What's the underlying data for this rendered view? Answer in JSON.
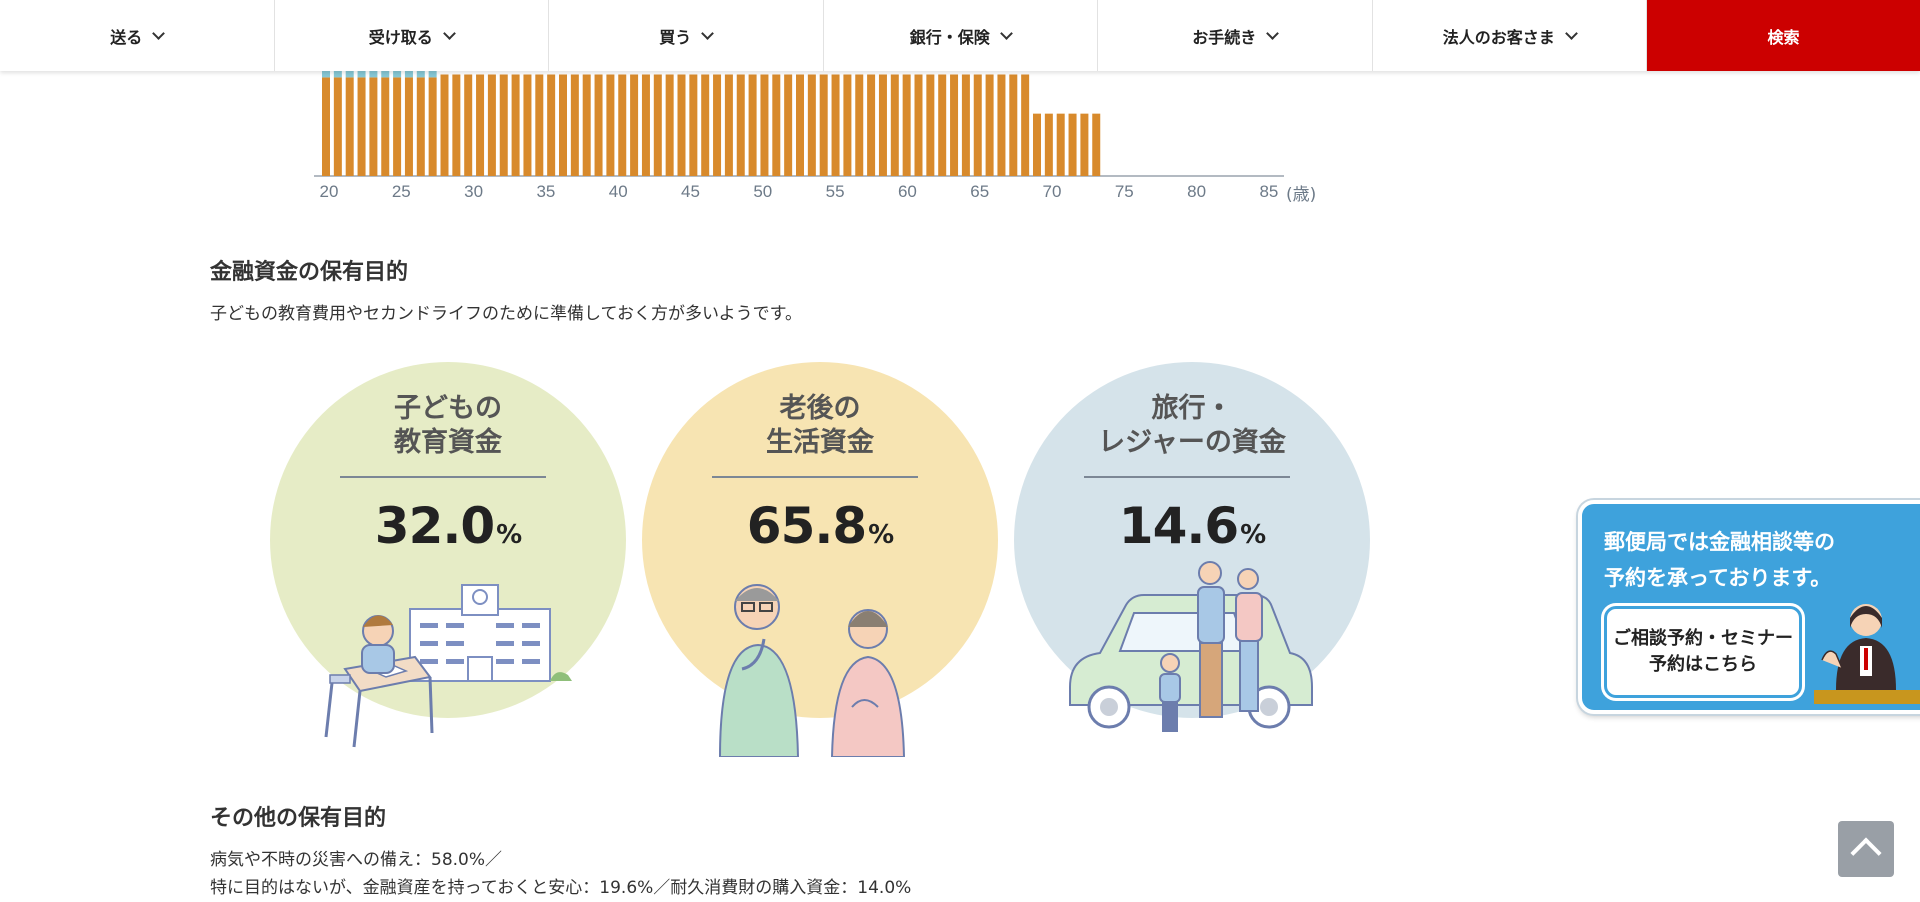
{
  "nav": {
    "items": [
      {
        "label": "送る"
      },
      {
        "label": "受け取る"
      },
      {
        "label": "買う"
      },
      {
        "label": "銀行・保険"
      },
      {
        "label": "お手続き"
      },
      {
        "label": "法人のお客さま"
      }
    ],
    "search_label": "検索"
  },
  "chart_data": {
    "type": "bar",
    "x_unit": "(歳)",
    "x_ticks": [
      "20",
      "25",
      "30",
      "35",
      "40",
      "45",
      "50",
      "55",
      "60",
      "65",
      "70",
      "75",
      "80",
      "85"
    ],
    "note": "Only the lower portion of the stacked bars (ages 20–85) is visible; values are relative heights of the visible orange segments.",
    "series": [
      {
        "color": "#d88a2c",
        "values": [
          68,
          68,
          68,
          68,
          68,
          68,
          68,
          68,
          68,
          68,
          70,
          70,
          70,
          70,
          70,
          70,
          70,
          70,
          70,
          70,
          70,
          70,
          70,
          70,
          70,
          70,
          70,
          70,
          70,
          70,
          70,
          70,
          70,
          70,
          70,
          70,
          70,
          70,
          70,
          70,
          70,
          70,
          70,
          70,
          70,
          70,
          70,
          70,
          70,
          70,
          70,
          70,
          70,
          70,
          70,
          70,
          70,
          70,
          70,
          70,
          43,
          43,
          43,
          43,
          43,
          43
        ]
      },
      {
        "color": "#86c7d4",
        "values": [
          20,
          20,
          20,
          20,
          20,
          20,
          20,
          20,
          20,
          20,
          0,
          0,
          0,
          0,
          0,
          0,
          0,
          0,
          0,
          0,
          0,
          0,
          0,
          0,
          0,
          0,
          0,
          0,
          0,
          0,
          0,
          0,
          0,
          0,
          0,
          0,
          0,
          0,
          0,
          0,
          0,
          0,
          0,
          0,
          0,
          0,
          0,
          0,
          0,
          0,
          0,
          0,
          0,
          0,
          0,
          0,
          0,
          0,
          0,
          0,
          0,
          0,
          0,
          0,
          0,
          0
        ]
      }
    ]
  },
  "section1": {
    "heading": "金融資金の保有目的",
    "lead": "子どもの教育費用やセカンドライフのために準備しておく方が多いようです。"
  },
  "circles": [
    {
      "title_line1": "子どもの",
      "title_line2": "教育資金",
      "value": "32.0",
      "unit": "%",
      "bg": "#e6ecc6"
    },
    {
      "title_line1": "老後の",
      "title_line2": "生活資金",
      "value": "65.8",
      "unit": "%",
      "bg": "#f7e4b2"
    },
    {
      "title_line1": "旅行・",
      "title_line2": "レジャーの資金",
      "value": "14.6",
      "unit": "%",
      "bg": "#d5e3ea"
    }
  ],
  "section2": {
    "heading": "その他の保有目的",
    "line1": "病気や不時の災害への備え：58.0%／",
    "line2": "特に目的はないが、金融資産を持っておくと安心：19.6%／耐久消費財の購入資金：14.0%"
  },
  "banner": {
    "line1": "郵便局では金融相談等の",
    "line2": "予約を承っております。",
    "button_line1": "ご相談予約・セミナー",
    "button_line2": "予約はこちら"
  },
  "icons": {
    "nav_chevron": "chevron-down-icon",
    "to_top": "arrow-up-icon"
  }
}
